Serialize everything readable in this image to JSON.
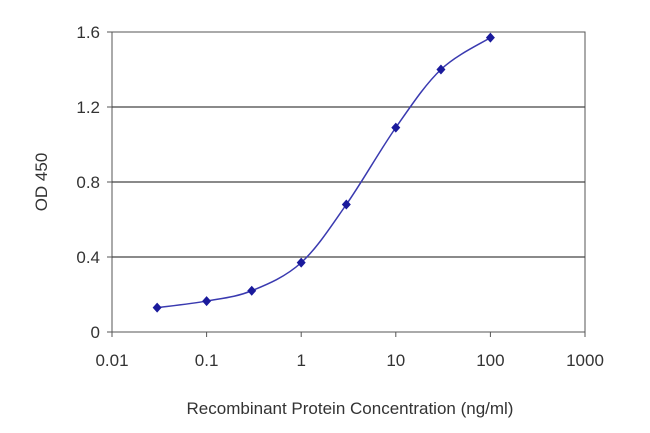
{
  "chart_data": {
    "type": "line",
    "title": "",
    "xlabel": "Recombinant Protein Concentration (ng/ml)",
    "ylabel": "OD 450",
    "xscale": "log",
    "xlim": [
      0.01,
      1000
    ],
    "ylim": [
      0,
      1.6
    ],
    "xticks": [
      "0.01",
      "0.1",
      "1",
      "10",
      "100",
      "1000"
    ],
    "yticks": [
      "0",
      "0.4",
      "0.8",
      "1.2",
      "1.6"
    ],
    "grid": "horizontal",
    "series": [
      {
        "x": [
          0.03,
          0.1,
          0.3,
          1,
          3,
          10,
          30,
          100
        ],
        "y": [
          0.13,
          0.165,
          0.22,
          0.37,
          0.68,
          1.09,
          1.4,
          1.57
        ],
        "color": "#1a1a9c"
      }
    ]
  }
}
